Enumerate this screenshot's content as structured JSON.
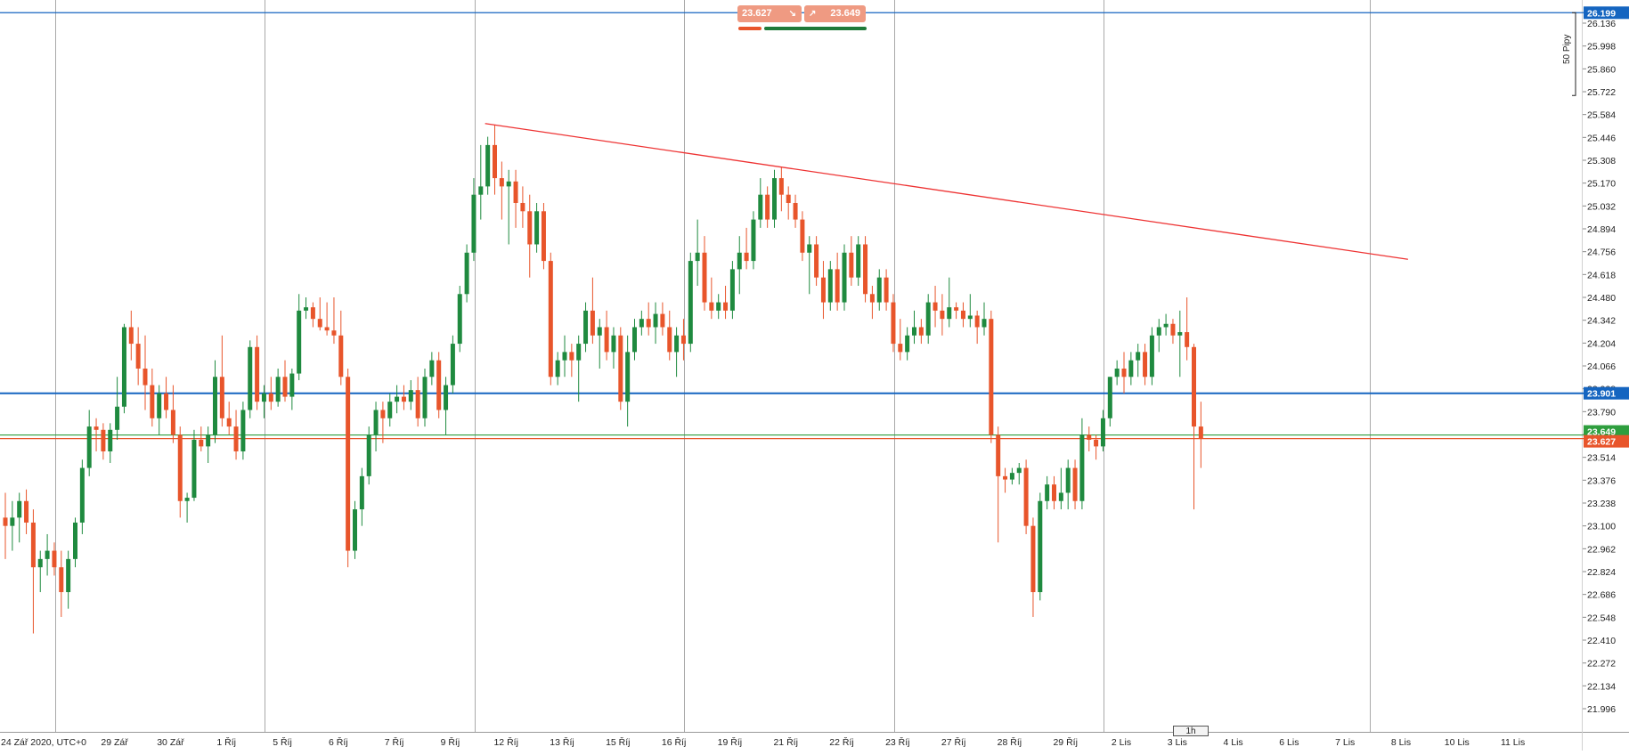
{
  "trade_panel": {
    "sell_price": "23.627",
    "buy_price": "23.649",
    "sell_icon": "arrow-down-right-icon",
    "buy_icon": "arrow-up-right-icon"
  },
  "timeframe": "1h",
  "pips_label": "50 Pipy",
  "colors": {
    "bull": "#1f8a3f",
    "bear": "#e8552b",
    "grid": "#a9a9a9",
    "blue_line": "#1565c0",
    "trendline": "#ee3333",
    "bid_line": "#e8552b",
    "ask_line": "#2e9e3e"
  },
  "chart_data": {
    "type": "candlestick",
    "instrument_note": "",
    "y_axis": {
      "ticks": [
        26.136,
        25.998,
        25.86,
        25.722,
        25.584,
        25.446,
        25.308,
        25.17,
        25.032,
        24.894,
        24.756,
        24.618,
        24.48,
        24.342,
        24.204,
        24.066,
        23.928,
        23.79,
        23.652,
        23.514,
        23.376,
        23.238,
        23.1,
        22.962,
        22.824,
        22.686,
        22.548,
        22.41,
        22.272,
        22.134,
        21.996
      ],
      "tick_labels": [
        "26.136",
        "25.998",
        "25.860",
        "25.722",
        "25.584",
        "25.446",
        "25.308",
        "25.170",
        "25.032",
        "24.894",
        "24.756",
        "24.618",
        "24.480",
        "24.342",
        "24.204",
        "24.066",
        "23.928",
        "23.790",
        "23.652",
        "23.514",
        "23.376",
        "23.238",
        "23.100",
        "22.962",
        "22.824",
        "22.686",
        "22.548",
        "22.410",
        "22.272",
        "22.134",
        "21.996"
      ],
      "range": [
        21.9,
        26.32
      ]
    },
    "x_axis": {
      "labels": [
        "24 Zář 2020, UTC+0",
        "29 Zář",
        "30 Zář",
        "1 Říj",
        "5 Říj",
        "6 Říj",
        "7 Říj",
        "9 Říj",
        "12 Říj",
        "13 Říj",
        "15 Říj",
        "16 Říj",
        "19 Říj",
        "21 Říj",
        "22 Říj",
        "23 Říj",
        "27 Říj",
        "28 Říj",
        "29 Říj",
        "2 Lis",
        "3 Lis",
        "4 Lis",
        "6 Lis",
        "7 Lis",
        "8 Lis",
        "10 Lis",
        "11 Lis"
      ],
      "label_slots": [
        0,
        16,
        24,
        32,
        40,
        48,
        56,
        64,
        72,
        80,
        88,
        96,
        104,
        112,
        120,
        128,
        136,
        144,
        152,
        160,
        168,
        176,
        184,
        192,
        200,
        208,
        216
      ],
      "vertical_grid_slots": [
        7.5,
        37.5,
        67.5,
        97.5,
        127.5,
        157.5,
        195.5
      ],
      "slot_count": 228
    },
    "horizontal_lines": [
      {
        "name": "upper-blue-line",
        "price": 26.199,
        "label": "26.199",
        "color": "#1565c0"
      },
      {
        "name": "blue-line",
        "price": 23.901,
        "label": "23.901",
        "color": "#1565c0"
      },
      {
        "name": "ask-line",
        "price": 23.649,
        "label": "23.649",
        "color": "#2e9e3e"
      },
      {
        "name": "bid-line",
        "price": 23.627,
        "label": "23.627",
        "color": "#e8552b"
      }
    ],
    "trendline": {
      "x1_slot": 69,
      "y1": 25.53,
      "x2_slot": 201,
      "y2": 24.71
    },
    "pips_bracket": {
      "top": 26.199,
      "bottom": 25.699
    },
    "candles": [
      [
        23.15,
        23.3,
        22.9,
        23.1
      ],
      [
        23.1,
        23.25,
        22.95,
        23.15
      ],
      [
        23.15,
        23.3,
        23.0,
        23.25
      ],
      [
        23.25,
        23.32,
        23.05,
        23.12
      ],
      [
        23.12,
        23.2,
        22.45,
        22.85
      ],
      [
        22.85,
        22.95,
        22.7,
        22.9
      ],
      [
        22.9,
        23.05,
        22.8,
        22.95
      ],
      [
        22.95,
        23.0,
        22.8,
        22.85
      ],
      [
        22.85,
        22.95,
        22.55,
        22.7
      ],
      [
        22.7,
        22.95,
        22.6,
        22.9
      ],
      [
        22.9,
        23.15,
        22.85,
        23.12
      ],
      [
        23.12,
        23.5,
        23.05,
        23.45
      ],
      [
        23.45,
        23.8,
        23.4,
        23.7
      ],
      [
        23.7,
        23.75,
        23.55,
        23.68
      ],
      [
        23.68,
        23.72,
        23.5,
        23.55
      ],
      [
        23.55,
        23.72,
        23.48,
        23.68
      ],
      [
        23.68,
        24.0,
        23.62,
        23.82
      ],
      [
        23.82,
        24.32,
        23.78,
        24.3
      ],
      [
        24.3,
        24.4,
        24.1,
        24.2
      ],
      [
        24.2,
        24.3,
        23.95,
        24.05
      ],
      [
        24.05,
        24.25,
        23.8,
        23.95
      ],
      [
        23.95,
        24.05,
        23.7,
        23.75
      ],
      [
        23.75,
        23.95,
        23.65,
        23.9
      ],
      [
        23.9,
        24.0,
        23.75,
        23.8
      ],
      [
        23.8,
        23.95,
        23.6,
        23.65
      ],
      [
        23.65,
        23.7,
        23.15,
        23.25
      ],
      [
        23.25,
        23.3,
        23.12,
        23.27
      ],
      [
        23.27,
        23.68,
        23.25,
        23.62
      ],
      [
        23.62,
        23.7,
        23.55,
        23.58
      ],
      [
        23.58,
        23.7,
        23.48,
        23.65
      ],
      [
        23.65,
        24.1,
        23.6,
        24.0
      ],
      [
        24.0,
        24.25,
        23.7,
        23.75
      ],
      [
        23.75,
        23.85,
        23.65,
        23.7
      ],
      [
        23.7,
        23.8,
        23.5,
        23.55
      ],
      [
        23.55,
        23.85,
        23.5,
        23.8
      ],
      [
        23.8,
        24.22,
        23.75,
        24.18
      ],
      [
        24.18,
        24.25,
        23.8,
        23.85
      ],
      [
        23.85,
        23.95,
        23.75,
        23.9
      ],
      [
        23.9,
        24.0,
        23.8,
        23.85
      ],
      [
        23.85,
        24.05,
        23.82,
        24.0
      ],
      [
        24.0,
        24.1,
        23.85,
        23.88
      ],
      [
        23.88,
        24.05,
        23.8,
        24.02
      ],
      [
        24.02,
        24.5,
        23.98,
        24.4
      ],
      [
        24.4,
        24.48,
        24.35,
        24.42
      ],
      [
        24.42,
        24.45,
        24.3,
        24.35
      ],
      [
        24.35,
        24.48,
        24.28,
        24.3
      ],
      [
        24.3,
        24.45,
        24.25,
        24.28
      ],
      [
        24.28,
        24.48,
        24.2,
        24.25
      ],
      [
        24.25,
        24.4,
        23.95,
        24.0
      ],
      [
        24.0,
        24.05,
        22.85,
        22.95
      ],
      [
        22.95,
        23.25,
        22.9,
        23.2
      ],
      [
        23.2,
        23.45,
        23.1,
        23.4
      ],
      [
        23.4,
        23.7,
        23.35,
        23.65
      ],
      [
        23.65,
        23.85,
        23.55,
        23.8
      ],
      [
        23.8,
        23.85,
        23.6,
        23.75
      ],
      [
        23.75,
        23.9,
        23.7,
        23.85
      ],
      [
        23.85,
        23.95,
        23.78,
        23.88
      ],
      [
        23.88,
        23.95,
        23.8,
        23.85
      ],
      [
        23.85,
        23.98,
        23.8,
        23.92
      ],
      [
        23.92,
        24.0,
        23.7,
        23.75
      ],
      [
        23.75,
        24.05,
        23.7,
        24.0
      ],
      [
        24.0,
        24.15,
        23.95,
        24.1
      ],
      [
        24.1,
        24.15,
        23.75,
        23.8
      ],
      [
        23.8,
        24.0,
        23.65,
        23.95
      ],
      [
        23.95,
        24.25,
        23.9,
        24.2
      ],
      [
        24.2,
        24.55,
        24.15,
        24.5
      ],
      [
        24.5,
        24.8,
        24.45,
        24.75
      ],
      [
        24.75,
        25.2,
        24.7,
        25.1
      ],
      [
        25.1,
        25.4,
        24.95,
        25.15
      ],
      [
        25.15,
        25.45,
        25.1,
        25.4
      ],
      [
        25.4,
        25.52,
        25.1,
        25.2
      ],
      [
        25.2,
        25.3,
        24.95,
        25.15
      ],
      [
        25.15,
        25.25,
        24.8,
        25.18
      ],
      [
        25.18,
        25.25,
        24.9,
        25.05
      ],
      [
        25.05,
        25.15,
        24.9,
        25.0
      ],
      [
        25.0,
        25.1,
        24.6,
        24.8
      ],
      [
        24.8,
        25.05,
        24.75,
        25.0
      ],
      [
        25.0,
        25.05,
        24.65,
        24.7
      ],
      [
        24.7,
        24.75,
        23.95,
        24.0
      ],
      [
        24.0,
        24.15,
        23.95,
        24.1
      ],
      [
        24.1,
        24.25,
        24.0,
        24.15
      ],
      [
        24.15,
        24.2,
        24.0,
        24.1
      ],
      [
        24.1,
        24.25,
        23.85,
        24.2
      ],
      [
        24.2,
        24.45,
        24.15,
        24.4
      ],
      [
        24.4,
        24.6,
        24.2,
        24.25
      ],
      [
        24.25,
        24.35,
        24.05,
        24.3
      ],
      [
        24.3,
        24.4,
        24.1,
        24.15
      ],
      [
        24.15,
        24.3,
        24.05,
        24.25
      ],
      [
        24.25,
        24.3,
        23.8,
        23.85
      ],
      [
        23.85,
        24.25,
        23.7,
        24.15
      ],
      [
        24.15,
        24.35,
        24.1,
        24.3
      ],
      [
        24.3,
        24.4,
        24.25,
        24.35
      ],
      [
        24.35,
        24.45,
        24.25,
        24.3
      ],
      [
        24.3,
        24.45,
        24.2,
        24.38
      ],
      [
        24.38,
        24.45,
        24.25,
        24.3
      ],
      [
        24.3,
        24.4,
        24.1,
        24.15
      ],
      [
        24.15,
        24.3,
        24.0,
        24.25
      ],
      [
        24.25,
        24.35,
        24.1,
        24.2
      ],
      [
        24.2,
        24.75,
        24.15,
        24.7
      ],
      [
        24.7,
        24.95,
        24.55,
        24.75
      ],
      [
        24.75,
        24.85,
        24.4,
        24.45
      ],
      [
        24.45,
        24.6,
        24.35,
        24.4
      ],
      [
        24.4,
        24.5,
        24.35,
        24.45
      ],
      [
        24.45,
        24.55,
        24.35,
        24.4
      ],
      [
        24.4,
        24.7,
        24.35,
        24.65
      ],
      [
        24.65,
        24.85,
        24.5,
        24.75
      ],
      [
        24.75,
        24.9,
        24.65,
        24.7
      ],
      [
        24.7,
        25.0,
        24.65,
        24.95
      ],
      [
        24.95,
        25.2,
        24.9,
        25.1
      ],
      [
        25.1,
        25.15,
        24.9,
        24.95
      ],
      [
        24.95,
        25.25,
        24.9,
        25.2
      ],
      [
        25.2,
        25.27,
        25.0,
        25.1
      ],
      [
        25.1,
        25.15,
        24.95,
        25.05
      ],
      [
        25.05,
        25.1,
        24.9,
        24.95
      ],
      [
        24.95,
        25.0,
        24.7,
        24.75
      ],
      [
        24.75,
        24.85,
        24.5,
        24.8
      ],
      [
        24.8,
        24.85,
        24.55,
        24.6
      ],
      [
        24.6,
        24.7,
        24.35,
        24.45
      ],
      [
        24.45,
        24.7,
        24.4,
        24.65
      ],
      [
        24.65,
        24.75,
        24.4,
        24.45
      ],
      [
        24.45,
        24.8,
        24.4,
        24.75
      ],
      [
        24.75,
        24.85,
        24.55,
        24.6
      ],
      [
        24.6,
        24.85,
        24.55,
        24.8
      ],
      [
        24.8,
        24.85,
        24.45,
        24.5
      ],
      [
        24.5,
        24.55,
        24.35,
        24.45
      ],
      [
        24.45,
        24.65,
        24.4,
        24.6
      ],
      [
        24.6,
        24.65,
        24.4,
        24.45
      ],
      [
        24.45,
        24.5,
        24.15,
        24.2
      ],
      [
        24.2,
        24.35,
        24.1,
        24.15
      ],
      [
        24.15,
        24.3,
        24.1,
        24.25
      ],
      [
        24.25,
        24.4,
        24.2,
        24.3
      ],
      [
        24.3,
        24.35,
        24.2,
        24.25
      ],
      [
        24.25,
        24.5,
        24.2,
        24.45
      ],
      [
        24.45,
        24.55,
        24.3,
        24.4
      ],
      [
        24.4,
        24.5,
        24.25,
        24.35
      ],
      [
        24.35,
        24.6,
        24.3,
        24.42
      ],
      [
        24.42,
        24.45,
        24.35,
        24.4
      ],
      [
        24.4,
        24.45,
        24.3,
        24.35
      ],
      [
        24.35,
        24.5,
        24.3,
        24.37
      ],
      [
        24.37,
        24.4,
        24.2,
        24.3
      ],
      [
        24.3,
        24.45,
        24.25,
        24.35
      ],
      [
        24.35,
        24.4,
        23.6,
        23.65
      ],
      [
        23.65,
        23.7,
        23.0,
        23.4
      ],
      [
        23.4,
        23.45,
        23.3,
        23.38
      ],
      [
        23.38,
        23.45,
        23.35,
        23.42
      ],
      [
        23.42,
        23.48,
        23.35,
        23.45
      ],
      [
        23.45,
        23.5,
        23.05,
        23.1
      ],
      [
        23.1,
        23.15,
        22.55,
        22.7
      ],
      [
        22.7,
        23.3,
        22.65,
        23.25
      ],
      [
        23.25,
        23.4,
        23.2,
        23.35
      ],
      [
        23.35,
        23.4,
        23.2,
        23.25
      ],
      [
        23.25,
        23.45,
        23.2,
        23.3
      ],
      [
        23.3,
        23.5,
        23.2,
        23.45
      ],
      [
        23.45,
        23.5,
        23.2,
        23.25
      ],
      [
        23.25,
        23.75,
        23.2,
        23.65
      ],
      [
        23.65,
        23.7,
        23.55,
        23.62
      ],
      [
        23.62,
        23.65,
        23.5,
        23.58
      ],
      [
        23.58,
        23.8,
        23.55,
        23.75
      ],
      [
        23.75,
        24.0,
        23.7,
        24.0
      ],
      [
        24.0,
        24.1,
        23.95,
        24.05
      ],
      [
        24.05,
        24.15,
        23.9,
        24.0
      ],
      [
        24.0,
        24.15,
        23.95,
        24.1
      ],
      [
        24.1,
        24.2,
        24.0,
        24.15
      ],
      [
        24.15,
        24.2,
        23.95,
        24.0
      ],
      [
        24.0,
        24.3,
        23.95,
        24.25
      ],
      [
        24.25,
        24.35,
        24.15,
        24.3
      ],
      [
        24.3,
        24.38,
        24.25,
        24.32
      ],
      [
        24.32,
        24.35,
        24.2,
        24.25
      ],
      [
        24.25,
        24.4,
        24.0,
        24.27
      ],
      [
        24.27,
        24.48,
        24.1,
        24.18
      ],
      [
        24.18,
        24.2,
        23.2,
        23.7
      ],
      [
        23.7,
        23.85,
        23.45,
        23.63
      ]
    ]
  }
}
